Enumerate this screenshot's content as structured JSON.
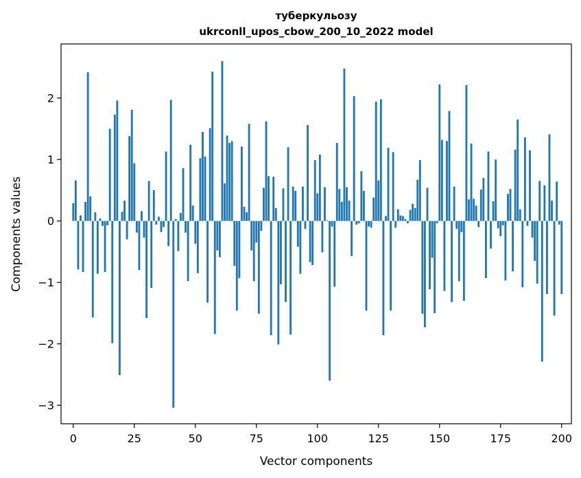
{
  "chart_data": {
    "type": "bar",
    "title": "туберкульозу",
    "subtitle": "ukrconll_upos_cbow_200_10_2022 model",
    "xlabel": "Vector components",
    "ylabel": "Components values",
    "xlim": [
      -5,
      204
    ],
    "ylim": [
      -3.3,
      2.88
    ],
    "xticks": [
      0,
      25,
      50,
      75,
      100,
      125,
      150,
      175,
      200
    ],
    "yticks": [
      -3,
      -2,
      -1,
      0,
      1,
      2
    ],
    "ytick_labels": [
      "−3",
      "−2",
      "−1",
      "0",
      "1",
      "2"
    ],
    "bar_color": "#1f77b4",
    "grid": false,
    "values": [
      0.29,
      0.66,
      -0.79,
      0.09,
      -0.83,
      0.31,
      2.42,
      0.4,
      -1.57,
      0.14,
      -0.86,
      0.04,
      -0.08,
      -0.83,
      -0.07,
      1.5,
      -1.99,
      1.73,
      1.96,
      -2.51,
      0.15,
      0.33,
      -0.3,
      1.38,
      1.81,
      0.94,
      -0.19,
      -0.8,
      0.16,
      -0.27,
      -1.58,
      0.65,
      -1.09,
      0.5,
      -0.06,
      0.07,
      -0.18,
      -0.1,
      1.13,
      -0.41,
      1.97,
      -3.04,
      0.03,
      -0.49,
      0.13,
      0.86,
      -0.19,
      -0.98,
      1.24,
      0.25,
      -0.37,
      -0.85,
      1.02,
      1.45,
      1.05,
      -1.33,
      1.51,
      2.43,
      -1.84,
      -0.48,
      -0.59,
      2.6,
      0.61,
      1.39,
      1.27,
      1.3,
      -0.73,
      -1.46,
      -0.93,
      1.21,
      0.23,
      0.14,
      1.58,
      -0.48,
      -0.98,
      -0.35,
      -1.51,
      -0.16,
      0.54,
      1.62,
      0.73,
      -1.86,
      0.72,
      0.21,
      -2.01,
      -1.03,
      0.53,
      -1.32,
      1.2,
      -1.85,
      0.56,
      0.49,
      -0.42,
      -0.86,
      0.56,
      -0.13,
      1.56,
      -0.67,
      -0.72,
      0.99,
      0.45,
      1.08,
      -0.51,
      0.55,
      0.01,
      -2.6,
      -0.09,
      -1.07,
      1.27,
      0.52,
      0.31,
      2.48,
      0.55,
      0.33,
      -0.57,
      2.03,
      -0.06,
      -0.04,
      0.81,
      0.49,
      -1.46,
      -0.09,
      -0.11,
      0.38,
      1.94,
      0.66,
      1.98,
      -1.86,
      0.08,
      1.19,
      -1.46,
      1.12,
      -0.11,
      0.19,
      0.09,
      0.08,
      0.03,
      -0.04,
      0.18,
      0.28,
      0.21,
      0.67,
      0.99,
      -1.51,
      -1.73,
      0.54,
      -1.11,
      -0.6,
      -1.5,
      -0.04,
      2.22,
      1.32,
      -1.14,
      1.3,
      1.79,
      -1.32,
      0.56,
      -0.13,
      -0.98,
      -0.18,
      -1.3,
      2.21,
      0.35,
      1.26,
      0.36,
      0.25,
      -0.1,
      0.51,
      0.7,
      -0.93,
      1.13,
      -0.45,
      0.32,
      1.0,
      -0.12,
      -0.25,
      -0.07,
      -0.97,
      0.44,
      0.52,
      -0.82,
      1.16,
      1.65,
      0.19,
      -1.08,
      1.36,
      -0.08,
      1.15,
      -0.27,
      -0.65,
      -1.02,
      0.65,
      -2.29,
      0.58,
      -1.19,
      1.41,
      0.33,
      -1.54,
      0.64,
      -0.06,
      -1.19
    ]
  }
}
